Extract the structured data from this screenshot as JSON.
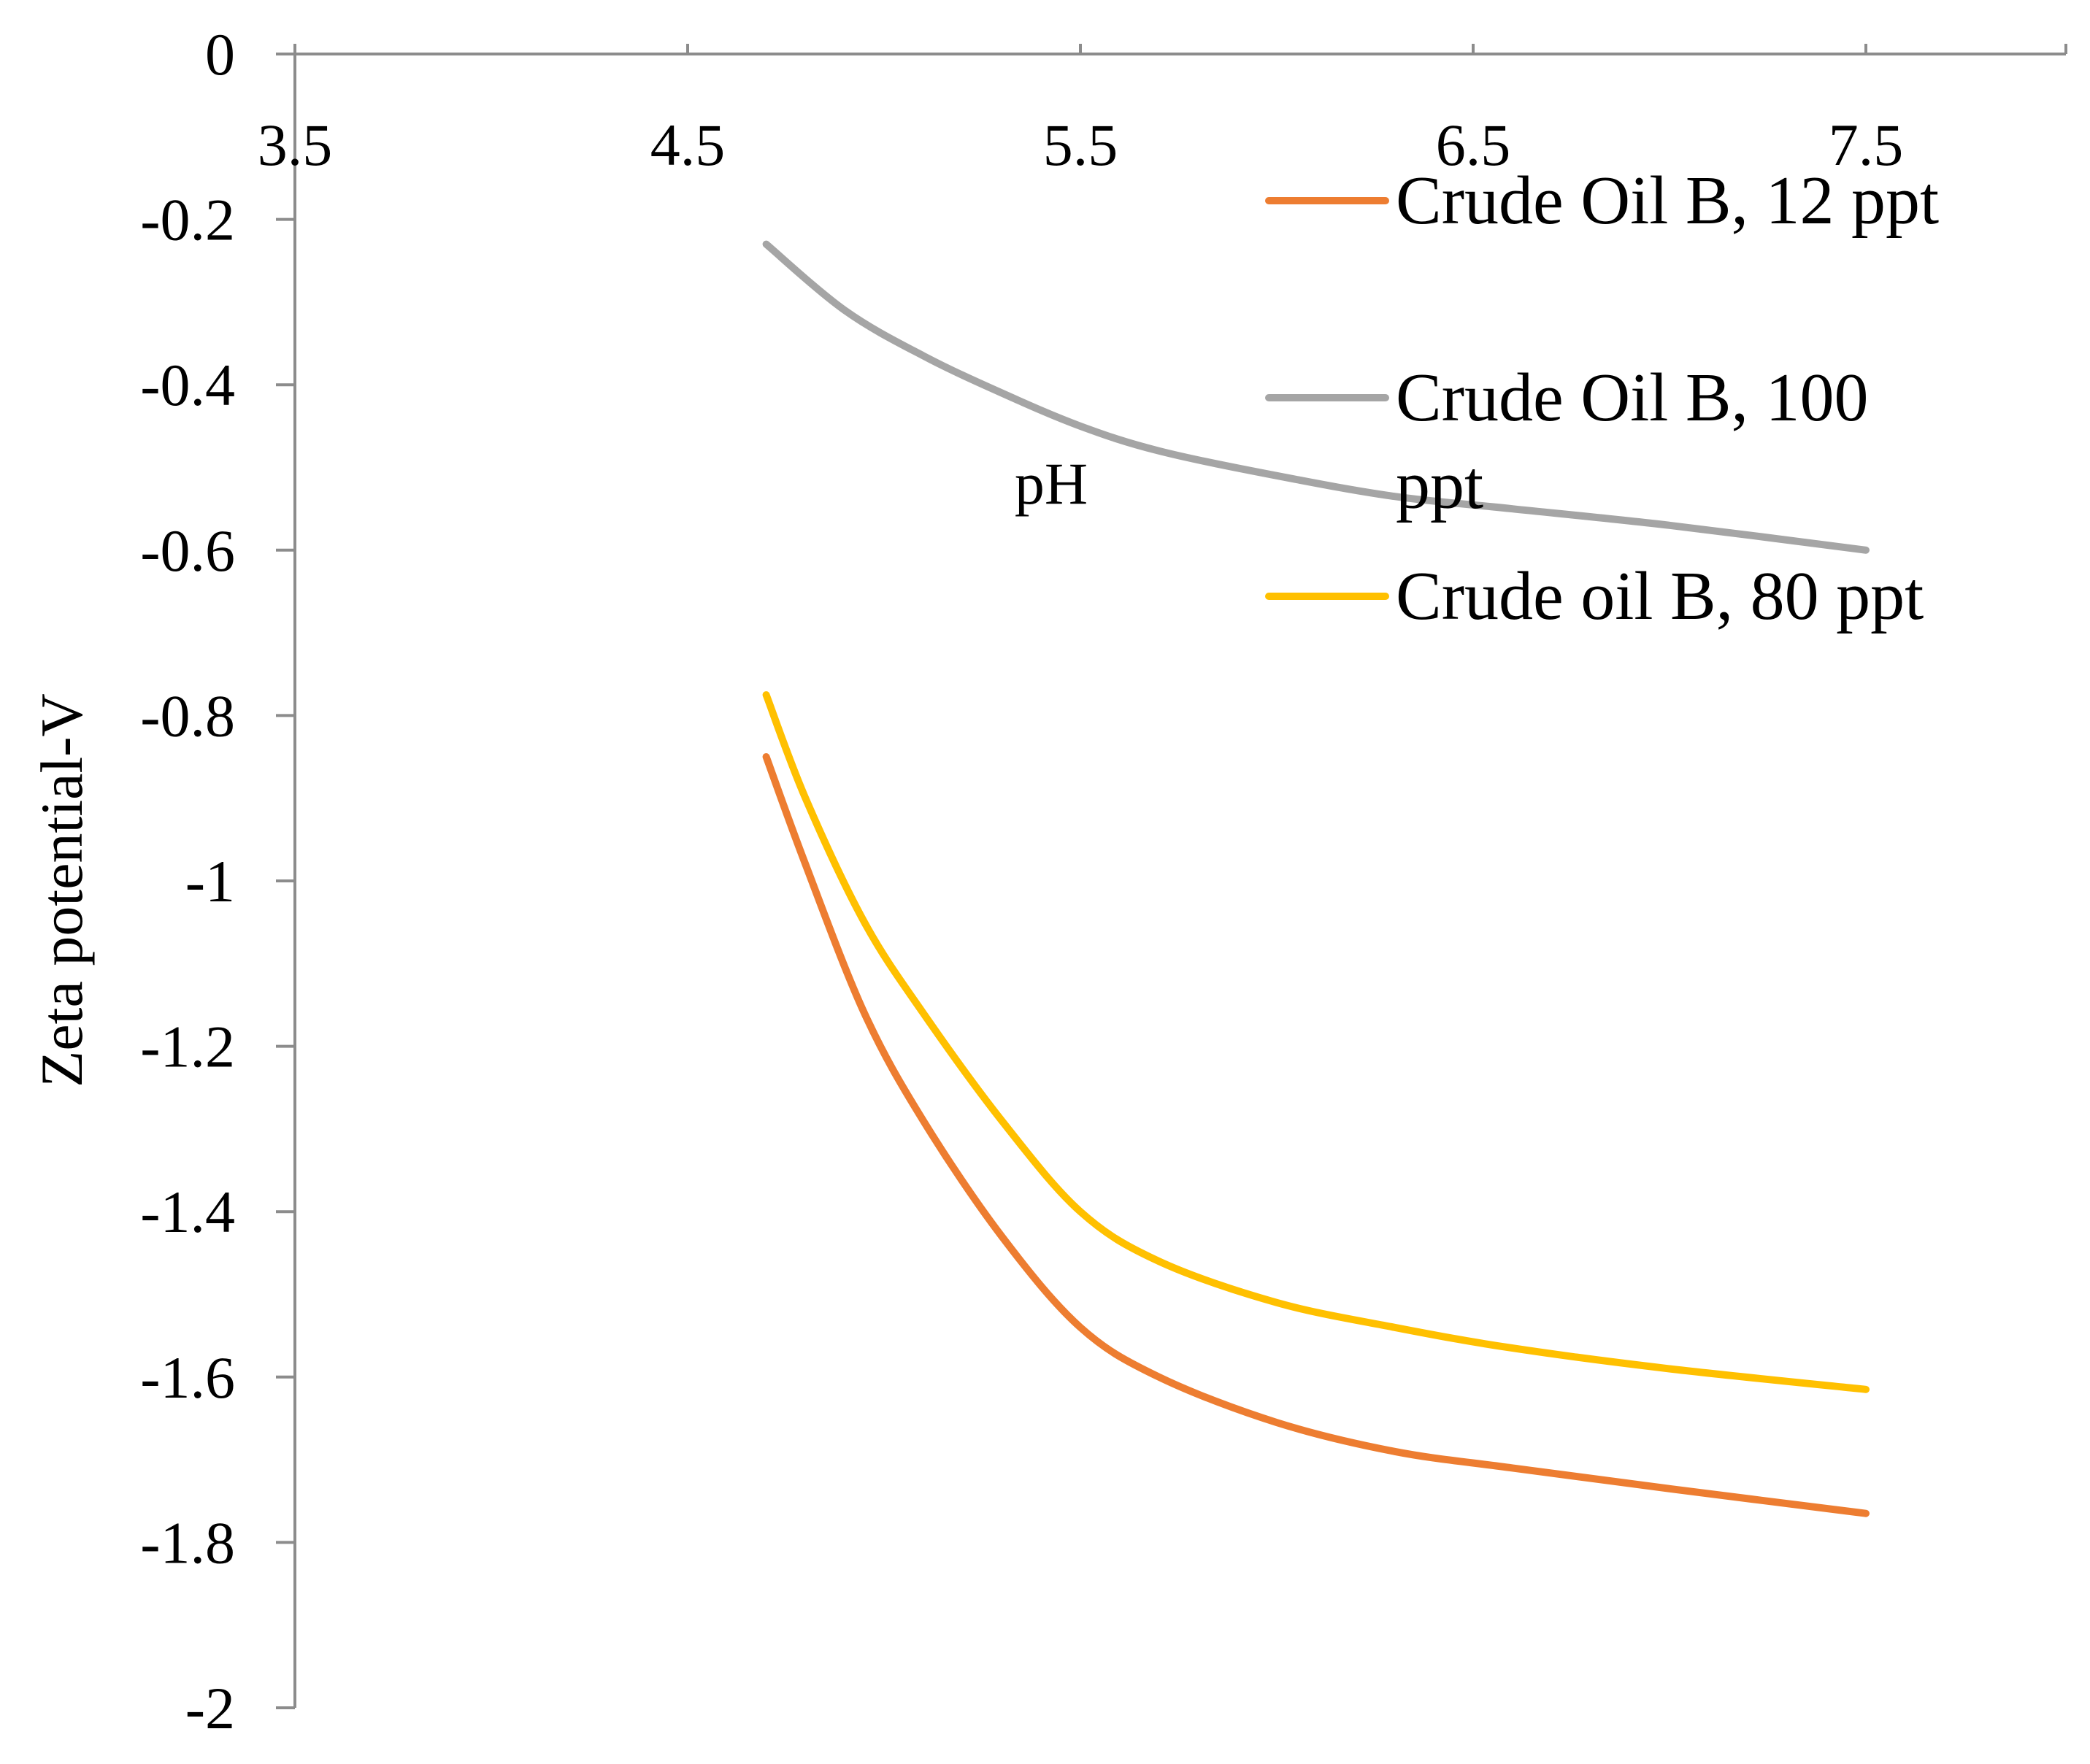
{
  "chart_data": {
    "type": "line",
    "title": "",
    "xlabel": "pH",
    "ylabel": "Zeta potential-V",
    "xlim": [
      3.5,
      8.0
    ],
    "ylim": [
      -2,
      0
    ],
    "x_ticks": [
      3.5,
      4.5,
      5.5,
      6.5,
      7.5
    ],
    "x_tick_labels": [
      "3.5",
      "4.5",
      "5.5",
      "6.5",
      "7.5"
    ],
    "y_ticks": [
      0,
      -0.2,
      -0.4,
      -0.6,
      -0.8,
      -1,
      -1.2,
      -1.4,
      -1.6,
      -1.8,
      -2
    ],
    "y_tick_labels": [
      "0",
      "-0.2",
      "-0.4",
      "-0.6",
      "-0.8",
      "-1",
      "-1.2",
      "-1.4",
      "-1.6",
      "-1.8",
      "-2"
    ],
    "grid": false,
    "legend_position": "top-right",
    "series": [
      {
        "name": "Crude Oil B, 12 ppt",
        "color": "#ED7D31",
        "x": [
          4.7,
          4.8,
          4.95,
          5.1,
          5.3,
          5.5,
          5.7,
          6.0,
          6.3,
          6.6,
          7.0,
          7.5
        ],
        "y": [
          -0.85,
          -0.98,
          -1.16,
          -1.29,
          -1.43,
          -1.54,
          -1.6,
          -1.655,
          -1.69,
          -1.71,
          -1.735,
          -1.765
        ]
      },
      {
        "name": "Crude Oil B, 100 ppt",
        "legend_lines": [
          "Crude Oil B, 100",
          "ppt"
        ],
        "color": "#A5A5A5",
        "x": [
          4.7,
          4.9,
          5.1,
          5.3,
          5.5,
          5.7,
          6.0,
          6.3,
          6.6,
          7.0,
          7.5
        ],
        "y": [
          -0.23,
          -0.31,
          -0.365,
          -0.41,
          -0.45,
          -0.48,
          -0.51,
          -0.535,
          -0.55,
          -0.57,
          -0.6
        ]
      },
      {
        "name": "Crude oil B, 80 ppt",
        "color": "#FFC000",
        "x": [
          4.7,
          4.8,
          4.95,
          5.1,
          5.3,
          5.5,
          5.7,
          6.0,
          6.3,
          6.6,
          7.0,
          7.5
        ],
        "y": [
          -0.775,
          -0.9,
          -1.05,
          -1.16,
          -1.29,
          -1.4,
          -1.46,
          -1.51,
          -1.54,
          -1.565,
          -1.59,
          -1.615
        ]
      }
    ]
  }
}
